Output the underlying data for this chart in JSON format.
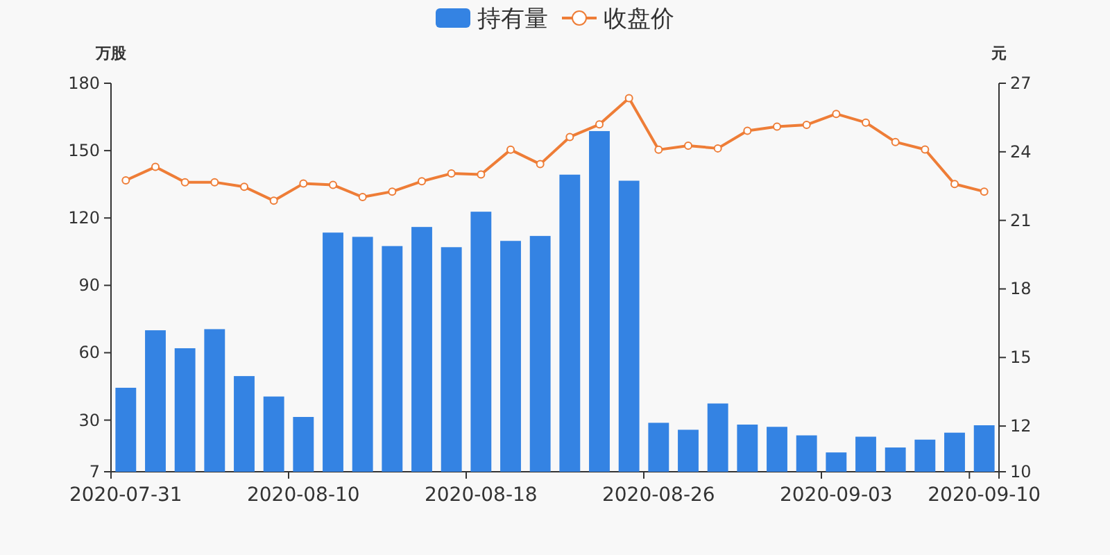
{
  "chart_data": {
    "type": "bar",
    "categories": [
      "2020-07-31",
      null,
      null,
      null,
      null,
      null,
      "2020-08-10",
      null,
      null,
      null,
      null,
      null,
      "2020-08-18",
      null,
      null,
      null,
      null,
      null,
      "2020-08-26",
      null,
      null,
      null,
      null,
      null,
      "2020-09-03",
      null,
      null,
      null,
      null,
      "2020-09-10"
    ],
    "ylabel": "万股",
    "y2label": "元",
    "ylim": [
      7,
      180
    ],
    "yticks": [
      7,
      30,
      60,
      90,
      120,
      150,
      180
    ],
    "y2lim": [
      10,
      27
    ],
    "y2ticks": [
      10,
      12,
      15,
      18,
      21,
      24,
      27
    ],
    "legend": "top",
    "marker": "circle",
    "series": [
      {
        "name": "持有量",
        "color": "#3483e3",
        "values": [
          44.4,
          70,
          62,
          70.5,
          49.6,
          40.5,
          31.4,
          113.5,
          111.6,
          107.5,
          116,
          107,
          122.8,
          109.8,
          112,
          139.3,
          158.7,
          136.6,
          28.8,
          25.7,
          37.4,
          28,
          27,
          23.2,
          15.6,
          22.6,
          17.8,
          21.3,
          24.4,
          27.7
        ]
      },
      {
        "name": "收盘价",
        "type": "line",
        "axis": "y2",
        "color": "#ee7d37",
        "values": [
          22.75,
          23.34,
          22.67,
          22.67,
          22.47,
          21.86,
          22.61,
          22.55,
          22.02,
          22.26,
          22.71,
          23.05,
          23.01,
          24.09,
          23.46,
          24.65,
          25.2,
          26.35,
          24.09,
          24.27,
          24.15,
          24.92,
          25.1,
          25.18,
          25.66,
          25.28,
          24.43,
          24.1,
          22.59,
          22.26
        ]
      }
    ]
  }
}
